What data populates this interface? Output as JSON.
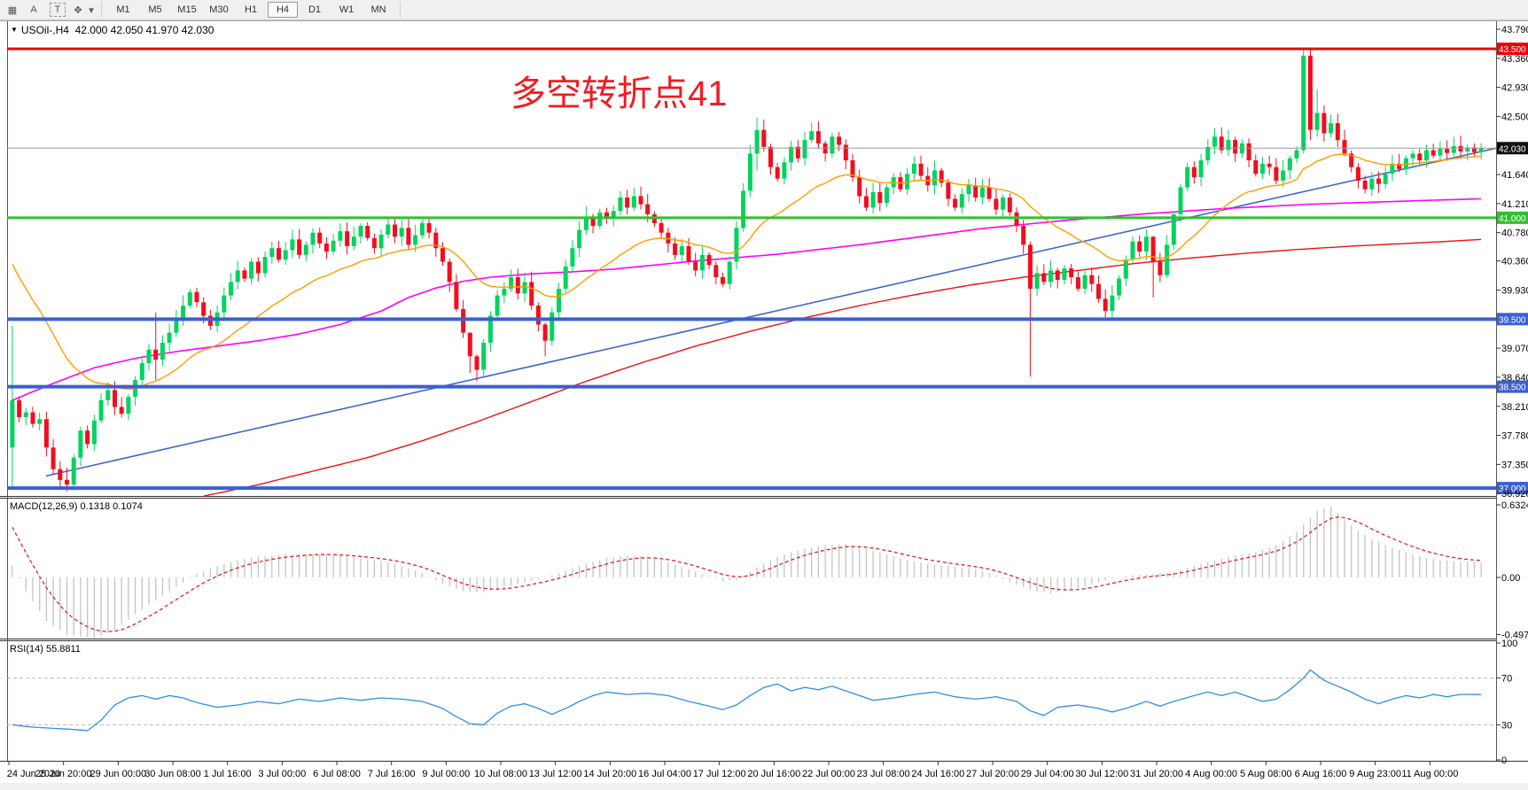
{
  "toolbar": {
    "icons": [
      {
        "name": "chart-shift-icon",
        "glyph": "▦"
      },
      {
        "name": "text-a-icon",
        "glyph": "A"
      },
      {
        "name": "text-label-icon",
        "glyph": "T"
      },
      {
        "name": "cursor-tool-icon",
        "glyph": "✥"
      },
      {
        "name": "dropdown-arrow-icon",
        "glyph": "▾"
      }
    ],
    "timeframes": [
      "M1",
      "M5",
      "M15",
      "M30",
      "H1",
      "H4",
      "D1",
      "W1",
      "MN"
    ],
    "active_timeframe": "H4"
  },
  "header": {
    "dropdown_glyph": "▼",
    "title": "USOil-,H4",
    "ohlc": "42.000 42.050 41.970 42.030"
  },
  "annotation": {
    "text": "多空转折点41",
    "color": "#f11c22"
  },
  "macd_pane": {
    "label": "MACD(12,26,9) 0.1318 0.1074",
    "ticks": [
      "0.6324",
      "0.00",
      "-0.497"
    ],
    "tick_values": [
      0.6324,
      0,
      -0.497
    ]
  },
  "rsi_pane": {
    "label": "RSI(14) 55.8811",
    "ticks": [
      "100",
      "70",
      "30",
      "0"
    ],
    "tick_values": [
      100,
      70,
      30,
      0
    ],
    "levels": [
      70,
      30
    ]
  },
  "time_axis": {
    "labels": [
      "24 Jun 2020",
      "25 Jun 20:00",
      "29 Jun 00:00",
      "30 Jun 08:00",
      "1 Jul 16:00",
      "3 Jul 00:00",
      "6 Jul 08:00",
      "7 Jul 16:00",
      "9 Jul 00:00",
      "10 Jul 08:00",
      "13 Jul 12:00",
      "14 Jul 20:00",
      "16 Jul 04:00",
      "17 Jul 12:00",
      "20 Jul 16:00",
      "22 Jul 00:00",
      "23 Jul 08:00",
      "24 Jul 16:00",
      "27 Jul 20:00",
      "29 Jul 04:00",
      "30 Jul 12:00",
      "31 Jul 20:00",
      "4 Aug 00:00",
      "5 Aug 08:00",
      "6 Aug 16:00",
      "9 Aug 23:00",
      "11 Aug 00:00"
    ]
  },
  "chart_data": {
    "type": "candlestick",
    "symbol": "USOil-",
    "period": "H4",
    "ohlc_display": {
      "open": "42.000",
      "high": "42.050",
      "low": "41.970",
      "close": "42.030"
    },
    "price_axis": {
      "range": [
        36.88,
        43.83
      ],
      "ticks": [
        43.79,
        43.36,
        42.93,
        42.5,
        41.64,
        41.21,
        40.78,
        40.36,
        39.93,
        39.07,
        38.64,
        38.21,
        37.78,
        37.35,
        36.92
      ]
    },
    "hlines": [
      {
        "price": 43.5,
        "label": "43.500",
        "color": "#ee0008",
        "width": 3,
        "badge_bg": "#ee0008"
      },
      {
        "price": 42.03,
        "label": "42.030",
        "color": "#9a9a9a",
        "width": 1,
        "badge_bg": "#101010"
      },
      {
        "price": 41.0,
        "label": "41.000",
        "color": "#2fc12f",
        "width": 3,
        "badge_bg": "#2fc12f"
      },
      {
        "price": 39.5,
        "label": "39.500",
        "color": "#3c5fd4",
        "width": 4,
        "badge_bg": "#3c5fd4"
      },
      {
        "price": 38.5,
        "label": "38.500",
        "color": "#3c5fd4",
        "width": 4,
        "badge_bg": "#3c5fd4"
      },
      {
        "price": 37.0,
        "label": "37.000",
        "color": "#3c5fd4",
        "width": 4,
        "badge_bg": "#3c5fd4"
      }
    ],
    "trendline": {
      "price1": 37.18,
      "price2": 42.03,
      "color": "#4066cc"
    },
    "bull_color": "#00d45e",
    "bear_color": "#f50c1e",
    "first_open": 37.6,
    "close": [
      38.3,
      38.05,
      38.12,
      37.95,
      38.02,
      37.6,
      37.28,
      37.12,
      37.05,
      37.45,
      37.85,
      37.65,
      38.0,
      38.3,
      38.45,
      38.2,
      38.1,
      38.35,
      38.6,
      38.85,
      39.05,
      38.9,
      39.15,
      39.3,
      39.5,
      39.7,
      39.9,
      39.75,
      39.55,
      39.4,
      39.6,
      39.85,
      40.05,
      40.22,
      40.1,
      40.35,
      40.18,
      40.42,
      40.55,
      40.38,
      40.52,
      40.68,
      40.45,
      40.6,
      40.78,
      40.62,
      40.5,
      40.66,
      40.8,
      40.58,
      40.72,
      40.88,
      40.7,
      40.55,
      40.75,
      40.9,
      40.72,
      40.85,
      40.6,
      40.74,
      40.92,
      40.78,
      40.55,
      40.35,
      40.05,
      39.65,
      39.3,
      38.95,
      38.75,
      39.15,
      39.55,
      39.85,
      39.95,
      40.12,
      39.88,
      40.05,
      39.7,
      39.42,
      39.18,
      39.6,
      39.95,
      40.28,
      40.55,
      40.82,
      41.02,
      40.88,
      41.08,
      41.0,
      41.1,
      41.3,
      41.15,
      41.32,
      41.2,
      41.05,
      40.92,
      40.78,
      40.62,
      40.45,
      40.58,
      40.35,
      40.22,
      40.45,
      40.3,
      40.12,
      40.02,
      40.35,
      40.85,
      41.4,
      41.95,
      42.3,
      42.05,
      41.75,
      41.58,
      41.82,
      42.05,
      41.88,
      42.15,
      42.28,
      42.1,
      41.95,
      42.2,
      42.08,
      41.85,
      41.6,
      41.32,
      41.15,
      41.38,
      41.22,
      41.45,
      41.6,
      41.42,
      41.65,
      41.8,
      41.62,
      41.48,
      41.7,
      41.52,
      41.28,
      41.15,
      41.35,
      41.48,
      41.3,
      41.45,
      41.28,
      41.12,
      41.3,
      41.08,
      40.88,
      40.6,
      39.95,
      40.18,
      40.05,
      40.22,
      40.08,
      40.25,
      40.12,
      39.95,
      40.15,
      40.02,
      39.8,
      39.62,
      39.85,
      40.1,
      40.38,
      40.65,
      40.5,
      40.72,
      40.35,
      40.15,
      40.6,
      41.05,
      41.45,
      41.75,
      41.6,
      41.85,
      42.05,
      42.2,
      42.0,
      42.15,
      41.95,
      42.1,
      41.85,
      41.65,
      41.8,
      41.75,
      41.55,
      41.7,
      41.88,
      42.0,
      43.4,
      42.3,
      42.55,
      42.25,
      42.4,
      42.15,
      41.95,
      41.75,
      41.55,
      41.42,
      41.58,
      41.5,
      41.65,
      41.8,
      41.72,
      41.88,
      41.95,
      41.85,
      42.0,
      41.92,
      42.02,
      41.96,
      42.06,
      41.98,
      42.04,
      41.97,
      42.03
    ],
    "wick_overrides": {
      "0": [
        39.4,
        36.98
      ],
      "7": [
        37.4,
        37.0
      ],
      "8": [
        37.3,
        36.95
      ],
      "21": [
        39.6,
        38.6
      ],
      "64": [
        40.4,
        39.9
      ],
      "67": [
        39.1,
        38.7
      ],
      "68": [
        38.98,
        38.58
      ],
      "78": [
        39.45,
        38.95
      ],
      "109": [
        42.48,
        41.7
      ],
      "149": [
        40.65,
        38.65
      ],
      "167": [
        40.72,
        39.82
      ],
      "189": [
        43.52,
        41.95
      ],
      "190": [
        43.5,
        42.15
      ],
      "191": [
        42.9,
        42.2
      ]
    },
    "ma": {
      "orange": {
        "type": "ema",
        "alpha": 0.085,
        "seed": 40.5,
        "color": "#ff9d00"
      },
      "magenta": {
        "color": "#ff00ff",
        "keypoints": [
          [
            0,
            38.3
          ],
          [
            6,
            38.55
          ],
          [
            12,
            38.78
          ],
          [
            18,
            38.92
          ],
          [
            24,
            39.02
          ],
          [
            30,
            39.1
          ],
          [
            36,
            39.18
          ],
          [
            42,
            39.28
          ],
          [
            48,
            39.42
          ],
          [
            54,
            39.62
          ],
          [
            58,
            39.82
          ],
          [
            62,
            39.96
          ],
          [
            66,
            40.06
          ],
          [
            70,
            40.12
          ],
          [
            76,
            40.17
          ],
          [
            82,
            40.2
          ],
          [
            88,
            40.24
          ],
          [
            94,
            40.3
          ],
          [
            100,
            40.36
          ],
          [
            106,
            40.41
          ],
          [
            112,
            40.46
          ],
          [
            118,
            40.53
          ],
          [
            124,
            40.6
          ],
          [
            130,
            40.68
          ],
          [
            136,
            40.76
          ],
          [
            142,
            40.84
          ],
          [
            148,
            40.9
          ],
          [
            154,
            40.96
          ],
          [
            160,
            41.01
          ],
          [
            166,
            41.06
          ],
          [
            172,
            41.1
          ],
          [
            178,
            41.14
          ],
          [
            184,
            41.17
          ],
          [
            190,
            41.2
          ],
          [
            196,
            41.22
          ],
          [
            202,
            41.24
          ],
          [
            208,
            41.26
          ],
          [
            215,
            41.28
          ]
        ]
      },
      "red": {
        "color": "#ee1111",
        "keypoints": [
          [
            28,
            36.88
          ],
          [
            36,
            37.05
          ],
          [
            44,
            37.25
          ],
          [
            52,
            37.45
          ],
          [
            60,
            37.7
          ],
          [
            68,
            37.98
          ],
          [
            76,
            38.28
          ],
          [
            84,
            38.58
          ],
          [
            92,
            38.85
          ],
          [
            100,
            39.1
          ],
          [
            108,
            39.32
          ],
          [
            116,
            39.52
          ],
          [
            124,
            39.7
          ],
          [
            132,
            39.86
          ],
          [
            140,
            40.0
          ],
          [
            148,
            40.12
          ],
          [
            156,
            40.22
          ],
          [
            164,
            40.32
          ],
          [
            172,
            40.4
          ],
          [
            180,
            40.47
          ],
          [
            188,
            40.53
          ],
          [
            196,
            40.58
          ],
          [
            204,
            40.62
          ],
          [
            210,
            40.65
          ],
          [
            215,
            40.68
          ]
        ]
      }
    },
    "macd": {
      "range": [
        -0.524,
        0.686
      ],
      "histogram_color": "#c4c4c4",
      "signal_color": "#e02020",
      "signal_seed": 0.55,
      "signal_alpha": 0.25,
      "keypoints": [
        [
          0,
          0.1
        ],
        [
          2,
          -0.12
        ],
        [
          5,
          -0.38
        ],
        [
          8,
          -0.5
        ],
        [
          12,
          -0.53
        ],
        [
          15,
          -0.46
        ],
        [
          18,
          -0.32
        ],
        [
          21,
          -0.2
        ],
        [
          24,
          -0.08
        ],
        [
          27,
          0.03
        ],
        [
          30,
          0.1
        ],
        [
          33,
          0.15
        ],
        [
          36,
          0.18
        ],
        [
          40,
          0.2
        ],
        [
          44,
          0.21
        ],
        [
          48,
          0.19
        ],
        [
          52,
          0.16
        ],
        [
          56,
          0.12
        ],
        [
          60,
          0.04
        ],
        [
          63,
          -0.06
        ],
        [
          66,
          -0.12
        ],
        [
          69,
          -0.13
        ],
        [
          72,
          -0.09
        ],
        [
          75,
          -0.04
        ],
        [
          78,
          0.0
        ],
        [
          81,
          0.06
        ],
        [
          84,
          0.12
        ],
        [
          87,
          0.17
        ],
        [
          90,
          0.19
        ],
        [
          93,
          0.18
        ],
        [
          96,
          0.13
        ],
        [
          99,
          0.07
        ],
        [
          102,
          0.01
        ],
        [
          104,
          -0.03
        ],
        [
          106,
          -0.02
        ],
        [
          108,
          0.05
        ],
        [
          110,
          0.12
        ],
        [
          112,
          0.18
        ],
        [
          114,
          0.22
        ],
        [
          116,
          0.25
        ],
        [
          119,
          0.28
        ],
        [
          122,
          0.29
        ],
        [
          125,
          0.25
        ],
        [
          128,
          0.2
        ],
        [
          131,
          0.15
        ],
        [
          134,
          0.12
        ],
        [
          137,
          0.1
        ],
        [
          140,
          0.08
        ],
        [
          143,
          0.04
        ],
        [
          146,
          -0.04
        ],
        [
          149,
          -0.11
        ],
        [
          152,
          -0.14
        ],
        [
          155,
          -0.11
        ],
        [
          158,
          -0.06
        ],
        [
          161,
          -0.01
        ],
        [
          164,
          0.02
        ],
        [
          167,
          0.03
        ],
        [
          170,
          0.05
        ],
        [
          174,
          0.12
        ],
        [
          178,
          0.18
        ],
        [
          182,
          0.22
        ],
        [
          185,
          0.28
        ],
        [
          188,
          0.4
        ],
        [
          191,
          0.58
        ],
        [
          193,
          0.62
        ],
        [
          196,
          0.45
        ],
        [
          199,
          0.33
        ],
        [
          202,
          0.26
        ],
        [
          205,
          0.2
        ],
        [
          208,
          0.16
        ],
        [
          211,
          0.14
        ],
        [
          215,
          0.132
        ]
      ]
    },
    "rsi": {
      "range": [
        0,
        100
      ],
      "line_color": "#2e8fe8",
      "level_color": "#b8b8b8",
      "keypoints": [
        [
          0,
          30
        ],
        [
          3,
          28
        ],
        [
          6,
          27
        ],
        [
          9,
          26
        ],
        [
          11,
          25
        ],
        [
          13,
          34
        ],
        [
          15,
          47
        ],
        [
          17,
          53
        ],
        [
          19,
          55
        ],
        [
          21,
          52
        ],
        [
          23,
          55
        ],
        [
          25,
          53
        ],
        [
          27,
          49
        ],
        [
          30,
          45
        ],
        [
          33,
          47
        ],
        [
          36,
          50
        ],
        [
          39,
          48
        ],
        [
          42,
          52
        ],
        [
          45,
          50
        ],
        [
          48,
          53
        ],
        [
          51,
          51
        ],
        [
          54,
          53
        ],
        [
          57,
          52
        ],
        [
          60,
          50
        ],
        [
          63,
          44
        ],
        [
          65,
          37
        ],
        [
          67,
          31
        ],
        [
          69,
          30
        ],
        [
          71,
          40
        ],
        [
          73,
          46
        ],
        [
          75,
          48
        ],
        [
          77,
          44
        ],
        [
          79,
          39
        ],
        [
          81,
          44
        ],
        [
          83,
          50
        ],
        [
          85,
          55
        ],
        [
          87,
          58
        ],
        [
          90,
          56
        ],
        [
          93,
          57
        ],
        [
          96,
          55
        ],
        [
          99,
          50
        ],
        [
          102,
          46
        ],
        [
          104,
          43
        ],
        [
          106,
          47
        ],
        [
          108,
          55
        ],
        [
          110,
          62
        ],
        [
          112,
          65
        ],
        [
          114,
          59
        ],
        [
          116,
          62
        ],
        [
          118,
          60
        ],
        [
          120,
          63
        ],
        [
          123,
          57
        ],
        [
          126,
          51
        ],
        [
          129,
          53
        ],
        [
          132,
          56
        ],
        [
          135,
          58
        ],
        [
          138,
          54
        ],
        [
          141,
          52
        ],
        [
          144,
          54
        ],
        [
          147,
          50
        ],
        [
          149,
          42
        ],
        [
          151,
          38
        ],
        [
          153,
          45
        ],
        [
          156,
          47
        ],
        [
          159,
          44
        ],
        [
          161,
          41
        ],
        [
          163,
          44
        ],
        [
          166,
          50
        ],
        [
          168,
          46
        ],
        [
          170,
          50
        ],
        [
          173,
          55
        ],
        [
          175,
          58
        ],
        [
          177,
          55
        ],
        [
          179,
          58
        ],
        [
          181,
          54
        ],
        [
          183,
          50
        ],
        [
          185,
          52
        ],
        [
          187,
          60
        ],
        [
          189,
          70
        ],
        [
          190,
          77
        ],
        [
          192,
          68
        ],
        [
          194,
          63
        ],
        [
          196,
          58
        ],
        [
          198,
          52
        ],
        [
          200,
          48
        ],
        [
          202,
          52
        ],
        [
          204,
          55
        ],
        [
          206,
          53
        ],
        [
          208,
          56
        ],
        [
          210,
          54
        ],
        [
          212,
          56
        ],
        [
          215,
          55.9
        ]
      ]
    }
  }
}
